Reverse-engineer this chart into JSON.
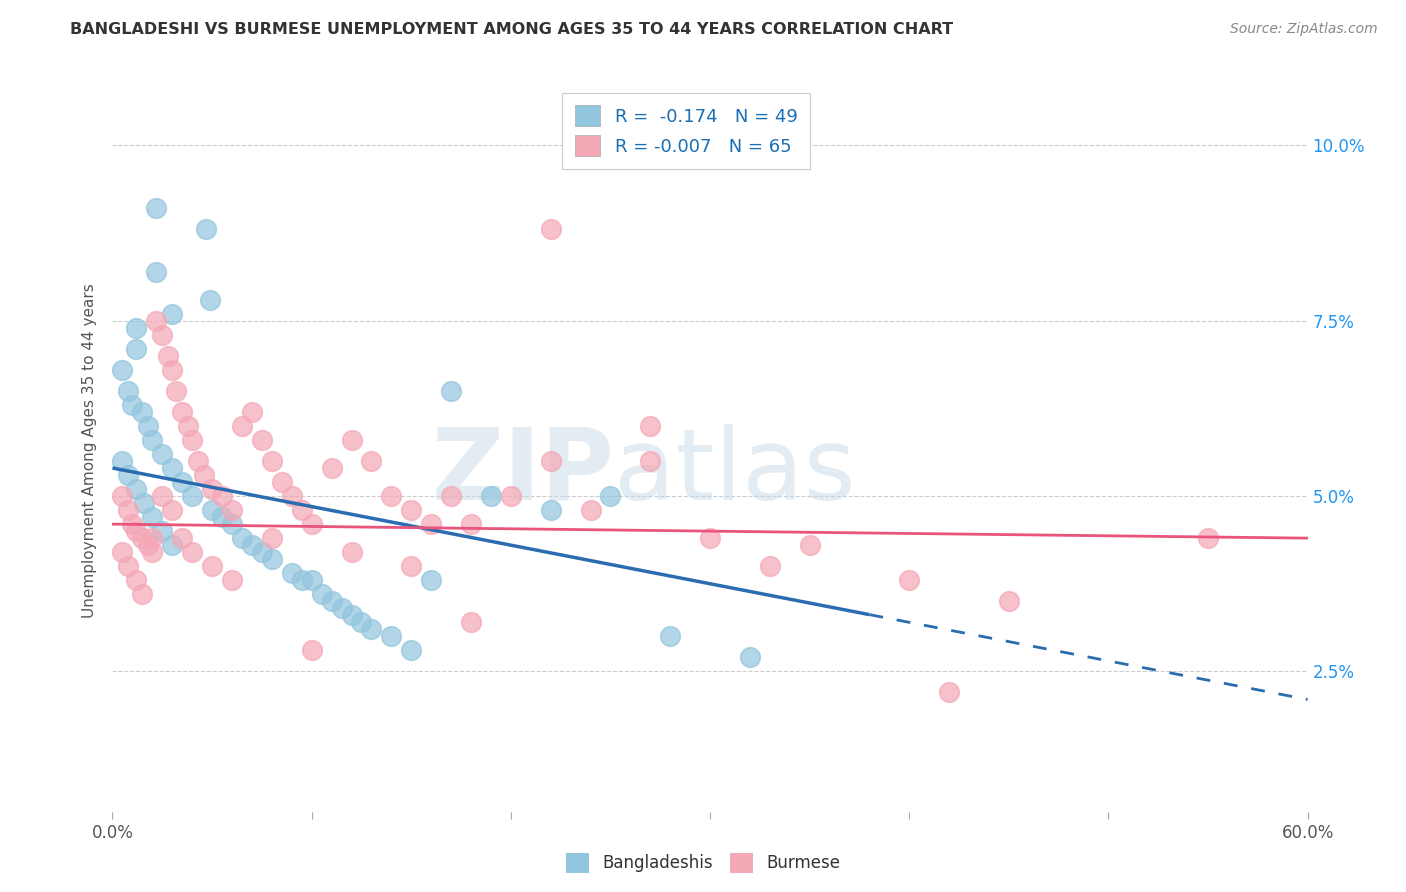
{
  "title": "BANGLADESHI VS BURMESE UNEMPLOYMENT AMONG AGES 35 TO 44 YEARS CORRELATION CHART",
  "source": "Source: ZipAtlas.com",
  "ylabel": "Unemployment Among Ages 35 to 44 years",
  "xlim": [
    0,
    0.6
  ],
  "ylim": [
    0.005,
    0.108
  ],
  "xticks": [
    0.0,
    0.6
  ],
  "xticklabels": [
    "0.0%",
    "60.0%"
  ],
  "yticks": [
    0.025,
    0.05,
    0.075,
    0.1
  ],
  "yticklabels": [
    "2.5%",
    "5.0%",
    "7.5%",
    "10.0%"
  ],
  "legend_r_bangladeshi": "-0.174",
  "legend_n_bangladeshi": "49",
  "legend_r_burmese": "-0.007",
  "legend_n_burmese": "65",
  "color_bangladeshi": "#92c5de",
  "color_burmese": "#f4a7b5",
  "color_line_bangladeshi": "#2b6cb0",
  "color_line_burmese": "#e8547a",
  "watermark_zip": "ZIP",
  "watermark_atlas": "atlas",
  "trend_b_x0": 0.0,
  "trend_b_y0": 0.054,
  "trend_b_x1": 0.6,
  "trend_b_y1": 0.021,
  "trend_b_solid_end": 0.38,
  "trend_r_x0": 0.0,
  "trend_r_y0": 0.046,
  "trend_r_x1": 0.6,
  "trend_r_y1": 0.044,
  "bangladeshi_x": [
    0.022,
    0.047,
    0.022,
    0.049,
    0.03,
    0.012,
    0.012,
    0.005,
    0.008,
    0.01,
    0.015,
    0.018,
    0.02,
    0.025,
    0.03,
    0.035,
    0.04,
    0.05,
    0.055,
    0.06,
    0.065,
    0.07,
    0.075,
    0.08,
    0.09,
    0.095,
    0.1,
    0.105,
    0.11,
    0.115,
    0.12,
    0.125,
    0.13,
    0.14,
    0.15,
    0.16,
    0.17,
    0.19,
    0.22,
    0.25,
    0.28,
    0.32,
    0.005,
    0.008,
    0.012,
    0.016,
    0.02,
    0.025,
    0.03
  ],
  "bangladeshi_y": [
    0.091,
    0.088,
    0.082,
    0.078,
    0.076,
    0.074,
    0.071,
    0.068,
    0.065,
    0.063,
    0.062,
    0.06,
    0.058,
    0.056,
    0.054,
    0.052,
    0.05,
    0.048,
    0.047,
    0.046,
    0.044,
    0.043,
    0.042,
    0.041,
    0.039,
    0.038,
    0.038,
    0.036,
    0.035,
    0.034,
    0.033,
    0.032,
    0.031,
    0.03,
    0.028,
    0.038,
    0.065,
    0.05,
    0.048,
    0.05,
    0.03,
    0.027,
    0.055,
    0.053,
    0.051,
    0.049,
    0.047,
    0.045,
    0.043
  ],
  "burmese_x": [
    0.005,
    0.008,
    0.01,
    0.012,
    0.015,
    0.018,
    0.02,
    0.022,
    0.025,
    0.028,
    0.03,
    0.032,
    0.035,
    0.038,
    0.04,
    0.043,
    0.046,
    0.05,
    0.055,
    0.06,
    0.065,
    0.07,
    0.075,
    0.08,
    0.085,
    0.09,
    0.095,
    0.1,
    0.11,
    0.12,
    0.13,
    0.14,
    0.15,
    0.16,
    0.17,
    0.18,
    0.2,
    0.22,
    0.24,
    0.27,
    0.3,
    0.35,
    0.4,
    0.45,
    0.55,
    0.005,
    0.008,
    0.012,
    0.015,
    0.02,
    0.025,
    0.03,
    0.035,
    0.04,
    0.05,
    0.06,
    0.08,
    0.1,
    0.12,
    0.15,
    0.18,
    0.22,
    0.27,
    0.33,
    0.42
  ],
  "burmese_y": [
    0.05,
    0.048,
    0.046,
    0.045,
    0.044,
    0.043,
    0.042,
    0.075,
    0.073,
    0.07,
    0.068,
    0.065,
    0.062,
    0.06,
    0.058,
    0.055,
    0.053,
    0.051,
    0.05,
    0.048,
    0.06,
    0.062,
    0.058,
    0.055,
    0.052,
    0.05,
    0.048,
    0.046,
    0.054,
    0.058,
    0.055,
    0.05,
    0.048,
    0.046,
    0.05,
    0.046,
    0.05,
    0.055,
    0.048,
    0.055,
    0.044,
    0.043,
    0.038,
    0.035,
    0.044,
    0.042,
    0.04,
    0.038,
    0.036,
    0.044,
    0.05,
    0.048,
    0.044,
    0.042,
    0.04,
    0.038,
    0.044,
    0.028,
    0.042,
    0.04,
    0.032,
    0.088,
    0.06,
    0.04,
    0.022
  ]
}
